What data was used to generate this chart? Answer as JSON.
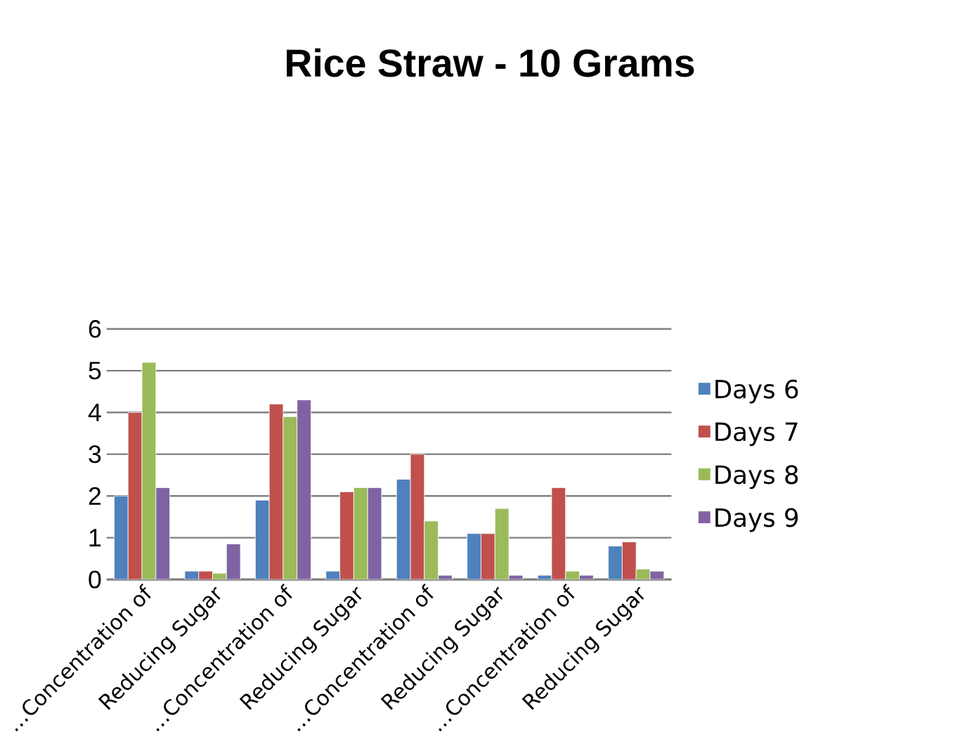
{
  "chart_data": {
    "type": "bar",
    "title": "Rice Straw - 10 Grams",
    "categories": [
      "…Concentration of",
      "Reducing Sugar",
      "…Concentration of",
      "Reducing Sugar",
      "…Concentration of",
      "Reducing Sugar",
      "…Concentration of",
      "Reducing Sugar"
    ],
    "series": [
      {
        "name": "Days 6",
        "color": "#4f81bd",
        "values": [
          2.0,
          0.2,
          1.9,
          0.2,
          2.4,
          1.1,
          0.1,
          0.8
        ]
      },
      {
        "name": "Days 7",
        "color": "#c0504d",
        "values": [
          4.0,
          0.2,
          4.2,
          2.1,
          3.0,
          1.1,
          2.2,
          0.9
        ]
      },
      {
        "name": "Days 8",
        "color": "#9bbb59",
        "values": [
          5.2,
          0.15,
          3.9,
          2.2,
          1.4,
          1.7,
          0.2,
          0.25
        ]
      },
      {
        "name": "Days 9",
        "color": "#8064a2",
        "values": [
          2.2,
          0.85,
          4.3,
          2.2,
          0.1,
          0.1,
          0.1,
          0.2
        ]
      }
    ],
    "ylim": [
      0,
      6
    ],
    "yticks": [
      0,
      1,
      2,
      3,
      4,
      5,
      6
    ],
    "grid": "y",
    "legend": "right"
  }
}
